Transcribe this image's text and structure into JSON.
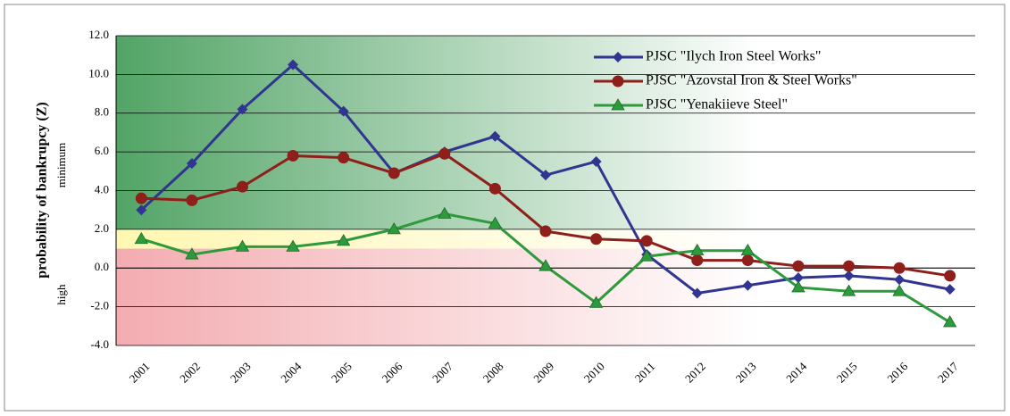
{
  "chart_data": {
    "type": "line",
    "y_label": "probability of bankrupcy (Z)",
    "annotations": [
      "minimum",
      "high"
    ],
    "categories": [
      "2001",
      "2002",
      "2003",
      "2004",
      "2005",
      "2006",
      "2007",
      "2008",
      "2009",
      "2010",
      "2011",
      "2012",
      "2013",
      "2014",
      "2015",
      "2016",
      "2017"
    ],
    "series": [
      {
        "name": "PJSC \"Ilych Iron Steel Works\"",
        "color": "#2f3591",
        "marker": "diamond",
        "values": [
          3.0,
          5.4,
          8.2,
          10.5,
          8.1,
          4.9,
          6.0,
          6.8,
          4.8,
          5.5,
          0.7,
          -1.3,
          -0.9,
          -0.5,
          -0.4,
          -0.6,
          -1.1
        ]
      },
      {
        "name": "PJSC \"Azovstal Iron & Steel Works\"",
        "color": "#8e1f1a",
        "marker": "circle",
        "values": [
          3.6,
          3.5,
          4.2,
          5.8,
          5.7,
          4.9,
          5.9,
          4.1,
          1.9,
          1.5,
          1.4,
          0.4,
          0.4,
          0.1,
          0.1,
          0.0,
          -0.4
        ]
      },
      {
        "name": "PJSC \"Yenakiieve Steel\"",
        "color": "#2d9a3c",
        "marker": "triangle",
        "values": [
          1.5,
          0.7,
          1.1,
          1.1,
          1.4,
          2.0,
          2.8,
          2.3,
          0.1,
          -1.8,
          0.6,
          0.9,
          0.9,
          -1.0,
          -1.2,
          -1.2,
          -2.8
        ]
      }
    ],
    "ylim": [
      -4,
      12
    ],
    "yticks": [
      {
        "value": -4,
        "label": "-4.0"
      },
      {
        "value": -2,
        "label": "-2.0"
      },
      {
        "value": 0,
        "label": "0.0"
      },
      {
        "value": 2,
        "label": "2.0"
      },
      {
        "value": 4,
        "label": "4.0"
      },
      {
        "value": 6,
        "label": "6.0"
      },
      {
        "value": 8,
        "label": "8.0"
      },
      {
        "value": 10,
        "label": "10.0"
      },
      {
        "value": 12,
        "label": "12.0"
      }
    ],
    "zones": [
      {
        "from": 2,
        "to": 12,
        "color": "#3f9a55"
      },
      {
        "from": 1,
        "to": 2,
        "color": "#fff6a8"
      },
      {
        "from": -4,
        "to": 1,
        "color": "#f2a3a8"
      }
    ],
    "grid": true,
    "legend": "top-right"
  }
}
